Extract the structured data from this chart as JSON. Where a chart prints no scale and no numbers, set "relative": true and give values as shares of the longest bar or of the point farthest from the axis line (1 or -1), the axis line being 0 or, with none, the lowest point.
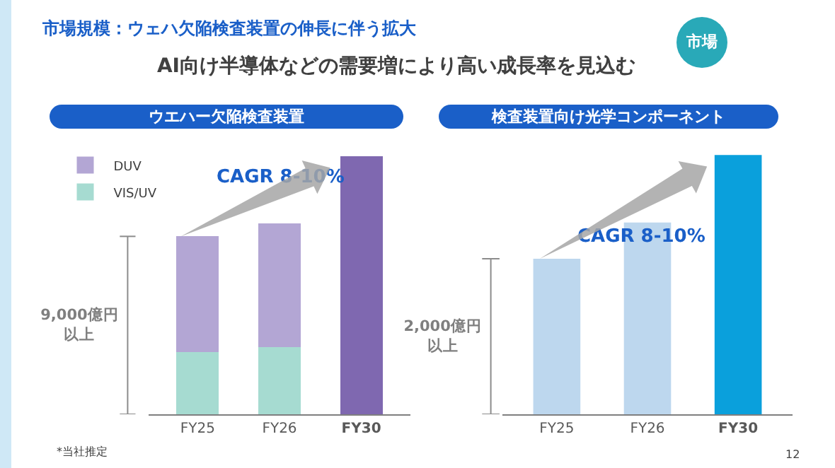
{
  "chart_data": [
    {
      "type": "bar",
      "title": "ウエハー欠陥検査装置",
      "subtitle": "市場規模：ウェハ欠陥検査装置の伸長に伴う拡大",
      "relative": true,
      "stacked": true,
      "legend": "top left",
      "categories": [
        "FY25",
        "FY26",
        "FY30"
      ],
      "series": [
        {
          "name": "VIS/UV",
          "colors": [
            "#a6dbd1",
            "#a6dbd1",
            "#1aa3b8"
          ],
          "values": [
            0.24,
            0.26,
            null
          ]
        },
        {
          "name": "DUV",
          "colors": [
            "#b3a6d4",
            "#b3a6d4",
            "#7f68b0"
          ],
          "values": [
            0.45,
            0.48,
            1.0
          ]
        }
      ],
      "annotations": [
        "9,000億円以上",
        "CAGR 8-10%",
        "*当社推定",
        "AI向け半導体などの需要増により高い成長率を見込む",
        "市場"
      ]
    },
    {
      "type": "bar",
      "title": "検査装置向け光学コンポーネント",
      "relative": true,
      "categories": [
        "FY25",
        "FY26",
        "FY30"
      ],
      "series": [
        {
          "colors": [
            "#bdd7ee",
            "#bdd7ee",
            "#0aa0dc"
          ],
          "values": [
            0.6,
            0.74,
            1.0
          ]
        }
      ],
      "annotations": [
        "2,000億円以上",
        "CAGR 8-10%",
        "12"
      ]
    }
  ]
}
